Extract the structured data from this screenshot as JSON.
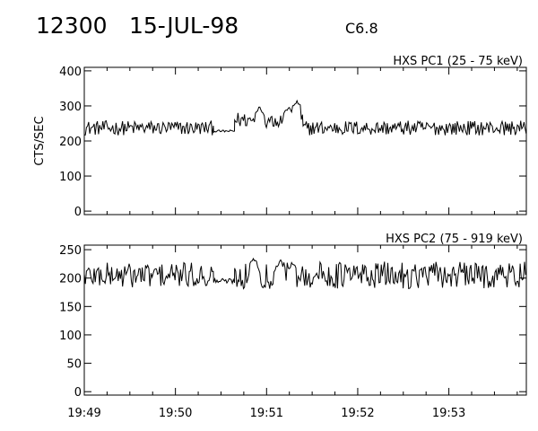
{
  "header": {
    "event_id": "12300",
    "date": "15-JUL-98",
    "flare_class": "C6.8"
  },
  "chart_data": [
    {
      "type": "line",
      "title": "HXS PC1 (25 - 75 keV)",
      "ylabel": "CTS/SEC",
      "xlabel": "",
      "x_unit": "minutes after 19:49 UT",
      "xlim": [
        0,
        4.85
      ],
      "ylim": [
        -10,
        410
      ],
      "yticks": [
        0,
        100,
        200,
        300,
        400
      ],
      "xticks": [
        "19:49",
        "19:50",
        "19:51",
        "19:52",
        "19:53"
      ],
      "xtick_values": [
        0,
        1,
        2,
        3,
        4
      ],
      "show_xtick_labels": false,
      "grid": false,
      "series": [
        {
          "segments": [
            {
              "x_range": [
                0.0,
                1.42
              ],
              "mean": 237,
              "noise": 13,
              "peaks": []
            },
            {
              "x_range": [
                1.42,
                1.65
              ],
              "mean": 228,
              "noise": 2,
              "peaks": []
            },
            {
              "x_range": [
                1.65,
                2.4
              ],
              "mean": 260,
              "noise": 14,
              "peaks": [
                [
                  1.92,
                  295
                ],
                [
                  2.24,
                  295
                ],
                [
                  2.33,
                  312
                ]
              ]
            },
            {
              "x_range": [
                2.4,
                4.85
              ],
              "mean": 237,
              "noise": 13,
              "peaks": []
            }
          ]
        }
      ]
    },
    {
      "type": "line",
      "title": "HXS PC2 (75 - 919 keV)",
      "ylabel": "",
      "xlabel": "",
      "x_unit": "minutes after 19:49 UT",
      "xlim": [
        0,
        4.85
      ],
      "ylim": [
        -6,
        258
      ],
      "yticks": [
        0,
        50,
        100,
        150,
        200,
        250
      ],
      "xticks": [
        "19:49",
        "19:50",
        "19:51",
        "19:52",
        "19:53"
      ],
      "xtick_values": [
        0,
        1,
        2,
        3,
        4
      ],
      "show_xtick_labels": true,
      "grid": false,
      "series": [
        {
          "segments": [
            {
              "x_range": [
                0.0,
                1.42
              ],
              "mean": 205,
              "noise": 14,
              "peaks": []
            },
            {
              "x_range": [
                1.42,
                1.65
              ],
              "mean": 195,
              "noise": 3,
              "peaks": []
            },
            {
              "x_range": [
                1.65,
                4.85
              ],
              "mean": 205,
              "noise": 15,
              "peaks": [
                [
                  1.86,
                  235
                ],
                [
                  2.15,
                  232
                ],
                [
                  2.28,
                  228
                ]
              ]
            }
          ]
        }
      ]
    }
  ]
}
